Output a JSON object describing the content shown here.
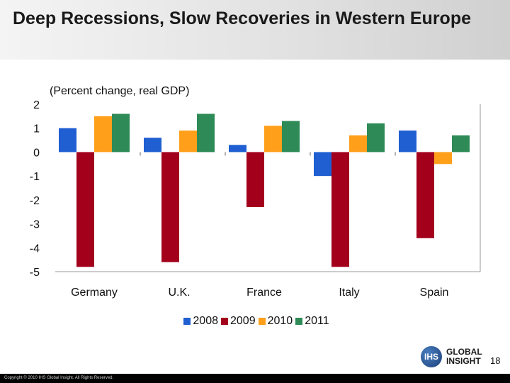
{
  "slide": {
    "title": "Deep Recessions, Slow Recoveries in Western Europe",
    "page_number": "18",
    "copyright": "Copyright © 2010 IHS Global Insight. All Rights Reserved.",
    "logo": {
      "mark": "IHS",
      "line1": "GLOBAL",
      "line2": "INSIGHT"
    }
  },
  "chart_data": {
    "type": "bar",
    "title": "",
    "subtitle": "(Percent change, real GDP)",
    "xlabel": "",
    "ylabel": "",
    "ylim": [
      -5,
      2
    ],
    "yticks": [
      2,
      1,
      0,
      -1,
      -2,
      -3,
      -4,
      -5
    ],
    "grid": false,
    "legend_position": "bottom",
    "categories": [
      "Germany",
      "U.K.",
      "France",
      "Italy",
      "Spain"
    ],
    "series": [
      {
        "name": "2008",
        "color": "#1f5fd1",
        "values": [
          1.0,
          0.6,
          0.3,
          -1.0,
          0.9
        ]
      },
      {
        "name": "2009",
        "color": "#a3001c",
        "values": [
          -4.8,
          -4.6,
          -2.3,
          -4.8,
          -3.6
        ]
      },
      {
        "name": "2010",
        "color": "#ff9f1a",
        "values": [
          1.5,
          0.9,
          1.1,
          0.7,
          -0.5
        ]
      },
      {
        "name": "2011",
        "color": "#2e8b57",
        "values": [
          1.6,
          1.6,
          1.3,
          1.2,
          0.7
        ]
      }
    ]
  }
}
